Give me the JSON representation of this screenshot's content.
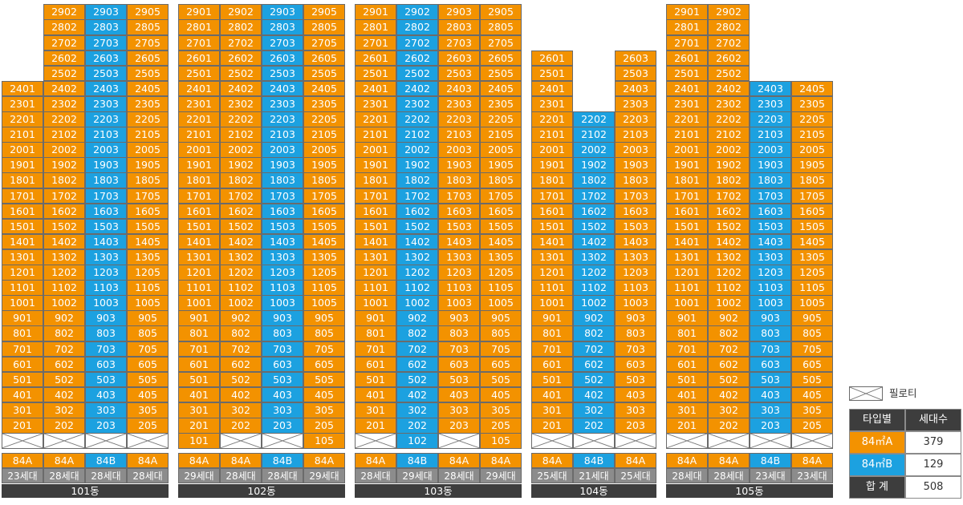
{
  "colors": {
    "A": "#f39200",
    "B": "#1ca1e0",
    "pilotis": "#ffffff",
    "count": "#8c8c8c",
    "label": "#3d3d3d"
  },
  "buildings": [
    {
      "name": "101동",
      "units": [
        "01",
        "02",
        "03",
        "05"
      ],
      "type_labels": [
        "84A",
        "84A",
        "84B",
        "84A"
      ],
      "type_kinds": [
        "A",
        "A",
        "B",
        "A"
      ],
      "counts": [
        "23세대",
        "28세대",
        "28세대",
        "28세대"
      ],
      "top_floor": [
        24,
        29,
        29,
        29
      ],
      "floor2_row": [
        "X",
        "X",
        "X",
        "X"
      ]
    },
    {
      "name": "102동",
      "units": [
        "01",
        "02",
        "03",
        "05"
      ],
      "type_labels": [
        "84A",
        "84A",
        "84B",
        "84A"
      ],
      "type_kinds": [
        "A",
        "A",
        "B",
        "A"
      ],
      "counts": [
        "29세대",
        "28세대",
        "28세대",
        "29세대"
      ],
      "top_floor": [
        29,
        29,
        29,
        29
      ],
      "floor2_row": [
        "101",
        "X",
        "X",
        "105"
      ]
    },
    {
      "name": "103동",
      "units": [
        "01",
        "02",
        "03",
        "05"
      ],
      "type_labels": [
        "84A",
        "84B",
        "84A",
        "84A"
      ],
      "type_kinds": [
        "A",
        "B",
        "A",
        "A"
      ],
      "counts": [
        "28세대",
        "29세대",
        "28세대",
        "29세대"
      ],
      "top_floor": [
        29,
        29,
        29,
        29
      ],
      "floor2_row": [
        "X",
        "102",
        "X",
        "105"
      ]
    },
    {
      "name": "104동",
      "units": [
        "01",
        "02",
        "03"
      ],
      "type_labels": [
        "84A",
        "84B",
        "84A"
      ],
      "type_kinds": [
        "A",
        "B",
        "A"
      ],
      "counts": [
        "25세대",
        "21세대",
        "25세대"
      ],
      "top_floor": [
        26,
        22,
        26
      ],
      "floor2_row": [
        "X",
        "X",
        "X"
      ]
    },
    {
      "name": "105동",
      "units": [
        "01",
        "02",
        "03",
        "05"
      ],
      "type_labels": [
        "84A",
        "84A",
        "84B",
        "84A"
      ],
      "type_kinds": [
        "A",
        "A",
        "B",
        "A"
      ],
      "counts": [
        "28세대",
        "28세대",
        "23세대",
        "23세대"
      ],
      "top_floor": [
        29,
        29,
        24,
        24
      ],
      "floor2_row": [
        "X",
        "X",
        "X",
        "X"
      ]
    }
  ],
  "legend": {
    "pilotis_label": "필로티",
    "header": [
      "타입별",
      "세대수"
    ],
    "rows": [
      {
        "type": "84㎡A",
        "count": "379",
        "kind": "A"
      },
      {
        "type": "84㎡B",
        "count": "129",
        "kind": "B"
      }
    ],
    "total_label": "합 계",
    "total_count": "508"
  }
}
